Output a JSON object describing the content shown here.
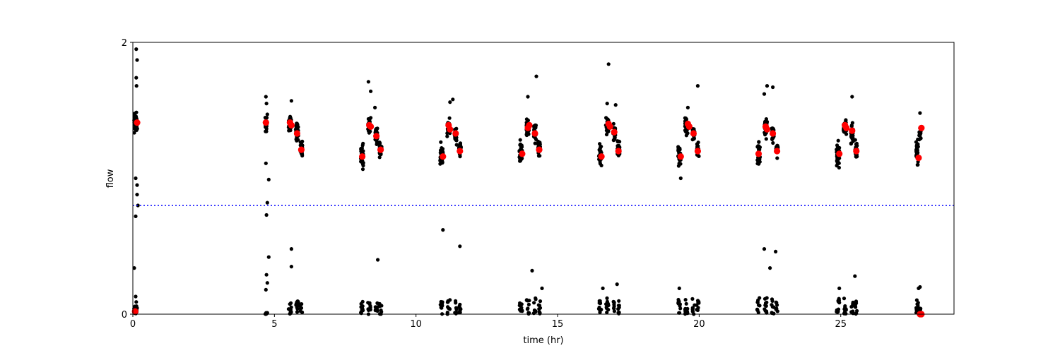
{
  "chart_data": {
    "type": "scatter",
    "title": "",
    "xlabel": "time (hr)",
    "ylabel": "flow",
    "xlim": [
      0,
      29
    ],
    "ylim": [
      0,
      2
    ],
    "xticks": [
      0,
      5,
      10,
      15,
      20,
      25
    ],
    "yticks": [
      0,
      2
    ],
    "grid": false,
    "threshold": {
      "y": 0.8,
      "style": "dotted",
      "color": "#0000ff"
    },
    "colors": {
      "observations": "#000000",
      "markers": "#ff0000",
      "threshold": "#0000ff"
    },
    "observation_clusters": [
      {
        "x": 0.1,
        "width": 0.12,
        "high_center": 1.41,
        "high_spread": 0.1,
        "low_max": 0.06,
        "n": 55
      },
      {
        "x": 4.7,
        "width": 0.06,
        "high_center": 1.4,
        "high_spread": 0.08,
        "low_max": 0.01,
        "n": 20
      },
      {
        "x": 5.55,
        "width": 0.1,
        "high_center": 1.4,
        "high_spread": 0.08,
        "low_max": 0.1,
        "n": 30
      },
      {
        "x": 5.8,
        "width": 0.1,
        "high_center": 1.34,
        "high_spread": 0.1,
        "low_max": 0.1,
        "n": 30
      },
      {
        "x": 5.95,
        "width": 0.08,
        "high_center": 1.22,
        "high_spread": 0.08,
        "low_max": 0.08,
        "n": 25
      },
      {
        "x": 8.1,
        "width": 0.1,
        "high_center": 1.18,
        "high_spread": 0.12,
        "low_max": 0.1,
        "n": 30
      },
      {
        "x": 8.35,
        "width": 0.1,
        "high_center": 1.38,
        "high_spread": 0.08,
        "low_max": 0.1,
        "n": 30
      },
      {
        "x": 8.6,
        "width": 0.08,
        "high_center": 1.32,
        "high_spread": 0.1,
        "low_max": 0.1,
        "n": 25
      },
      {
        "x": 8.75,
        "width": 0.08,
        "high_center": 1.22,
        "high_spread": 0.08,
        "low_max": 0.08,
        "n": 25
      },
      {
        "x": 10.9,
        "width": 0.1,
        "high_center": 1.17,
        "high_spread": 0.12,
        "low_max": 0.1,
        "n": 30
      },
      {
        "x": 11.15,
        "width": 0.1,
        "high_center": 1.37,
        "high_spread": 0.09,
        "low_max": 0.12,
        "n": 30
      },
      {
        "x": 11.4,
        "width": 0.08,
        "high_center": 1.32,
        "high_spread": 0.1,
        "low_max": 0.1,
        "n": 25
      },
      {
        "x": 11.55,
        "width": 0.08,
        "high_center": 1.21,
        "high_spread": 0.08,
        "low_max": 0.08,
        "n": 25
      },
      {
        "x": 13.7,
        "width": 0.1,
        "high_center": 1.19,
        "high_spread": 0.12,
        "low_max": 0.1,
        "n": 30
      },
      {
        "x": 13.95,
        "width": 0.1,
        "high_center": 1.37,
        "high_spread": 0.09,
        "low_max": 0.12,
        "n": 30
      },
      {
        "x": 14.2,
        "width": 0.08,
        "high_center": 1.33,
        "high_spread": 0.1,
        "low_max": 0.12,
        "n": 25
      },
      {
        "x": 14.35,
        "width": 0.08,
        "high_center": 1.22,
        "high_spread": 0.08,
        "low_max": 0.1,
        "n": 25
      },
      {
        "x": 16.5,
        "width": 0.1,
        "high_center": 1.17,
        "high_spread": 0.12,
        "low_max": 0.1,
        "n": 30
      },
      {
        "x": 16.75,
        "width": 0.1,
        "high_center": 1.38,
        "high_spread": 0.09,
        "low_max": 0.12,
        "n": 30
      },
      {
        "x": 17.0,
        "width": 0.08,
        "high_center": 1.33,
        "high_spread": 0.1,
        "low_max": 0.12,
        "n": 25
      },
      {
        "x": 17.15,
        "width": 0.08,
        "high_center": 1.21,
        "high_spread": 0.08,
        "low_max": 0.1,
        "n": 25
      },
      {
        "x": 19.3,
        "width": 0.1,
        "high_center": 1.17,
        "high_spread": 0.12,
        "low_max": 0.12,
        "n": 30
      },
      {
        "x": 19.55,
        "width": 0.1,
        "high_center": 1.38,
        "high_spread": 0.09,
        "low_max": 0.12,
        "n": 30
      },
      {
        "x": 19.8,
        "width": 0.08,
        "high_center": 1.33,
        "high_spread": 0.1,
        "low_max": 0.12,
        "n": 25
      },
      {
        "x": 19.95,
        "width": 0.08,
        "high_center": 1.21,
        "high_spread": 0.08,
        "low_max": 0.1,
        "n": 25
      },
      {
        "x": 22.1,
        "width": 0.1,
        "high_center": 1.18,
        "high_spread": 0.12,
        "low_max": 0.12,
        "n": 30
      },
      {
        "x": 22.35,
        "width": 0.1,
        "high_center": 1.37,
        "high_spread": 0.09,
        "low_max": 0.12,
        "n": 30
      },
      {
        "x": 22.6,
        "width": 0.08,
        "high_center": 1.32,
        "high_spread": 0.1,
        "low_max": 0.12,
        "n": 25
      },
      {
        "x": 22.75,
        "width": 0.08,
        "high_center": 1.21,
        "high_spread": 0.08,
        "low_max": 0.1,
        "n": 25
      },
      {
        "x": 24.9,
        "width": 0.1,
        "high_center": 1.18,
        "high_spread": 0.12,
        "low_max": 0.12,
        "n": 30
      },
      {
        "x": 25.15,
        "width": 0.1,
        "high_center": 1.37,
        "high_spread": 0.09,
        "low_max": 0.12,
        "n": 30
      },
      {
        "x": 25.4,
        "width": 0.08,
        "high_center": 1.32,
        "high_spread": 0.1,
        "low_max": 0.12,
        "n": 25
      },
      {
        "x": 25.55,
        "width": 0.08,
        "high_center": 1.21,
        "high_spread": 0.08,
        "low_max": 0.1,
        "n": 25
      },
      {
        "x": 27.7,
        "width": 0.08,
        "high_center": 1.2,
        "high_spread": 0.12,
        "low_max": 0.12,
        "n": 30
      },
      {
        "x": 27.8,
        "width": 0.06,
        "high_center": 1.32,
        "high_spread": 0.08,
        "low_max": 0.05,
        "n": 15
      }
    ],
    "observation_outliers": [
      [
        0.12,
        1.95
      ],
      [
        0.15,
        1.87
      ],
      [
        0.12,
        1.74
      ],
      [
        0.13,
        1.68
      ],
      [
        0.1,
        1.0
      ],
      [
        0.15,
        0.95
      ],
      [
        0.15,
        0.88
      ],
      [
        0.18,
        0.8
      ],
      [
        0.1,
        0.72
      ],
      [
        0.05,
        0.34
      ],
      [
        0.1,
        0.13
      ],
      [
        0.12,
        0.09
      ],
      [
        4.7,
        1.6
      ],
      [
        4.72,
        1.55
      ],
      [
        4.75,
        1.47
      ],
      [
        4.7,
        1.11
      ],
      [
        4.8,
        0.99
      ],
      [
        4.75,
        0.82
      ],
      [
        4.72,
        0.73
      ],
      [
        4.8,
        0.42
      ],
      [
        4.72,
        0.29
      ],
      [
        4.75,
        0.23
      ],
      [
        4.7,
        0.18
      ],
      [
        4.75,
        0.01
      ],
      [
        5.6,
        0.48
      ],
      [
        5.6,
        0.35
      ],
      [
        5.6,
        1.57
      ],
      [
        8.32,
        1.71
      ],
      [
        8.4,
        1.64
      ],
      [
        8.65,
        0.4
      ],
      [
        8.55,
        1.52
      ],
      [
        10.95,
        0.62
      ],
      [
        11.55,
        0.5
      ],
      [
        11.2,
        1.56
      ],
      [
        11.3,
        1.58
      ],
      [
        13.95,
        1.6
      ],
      [
        14.25,
        1.75
      ],
      [
        14.1,
        0.32
      ],
      [
        14.45,
        0.19
      ],
      [
        16.8,
        1.84
      ],
      [
        16.75,
        1.55
      ],
      [
        17.05,
        1.54
      ],
      [
        17.1,
        0.22
      ],
      [
        16.6,
        0.19
      ],
      [
        19.6,
        1.52
      ],
      [
        19.95,
        1.68
      ],
      [
        19.35,
        1.0
      ],
      [
        19.3,
        0.19
      ],
      [
        22.3,
        0.48
      ],
      [
        22.4,
        1.68
      ],
      [
        22.6,
        1.67
      ],
      [
        22.5,
        0.34
      ],
      [
        22.7,
        0.46
      ],
      [
        22.3,
        1.62
      ],
      [
        25.4,
        1.6
      ],
      [
        25.5,
        0.28
      ],
      [
        24.95,
        0.19
      ],
      [
        27.75,
        0.19
      ],
      [
        27.8,
        0.2
      ],
      [
        27.8,
        1.48
      ]
    ],
    "markers": [
      [
        0.15,
        1.41
      ],
      [
        0.08,
        0.02
      ],
      [
        4.7,
        1.41
      ],
      [
        5.55,
        1.41
      ],
      [
        5.6,
        1.39
      ],
      [
        5.8,
        1.33
      ],
      [
        5.95,
        1.21
      ],
      [
        8.1,
        1.16
      ],
      [
        8.35,
        1.39
      ],
      [
        8.4,
        1.38
      ],
      [
        8.6,
        1.31
      ],
      [
        8.75,
        1.21
      ],
      [
        10.95,
        1.16
      ],
      [
        11.15,
        1.39
      ],
      [
        11.2,
        1.36
      ],
      [
        11.4,
        1.33
      ],
      [
        11.55,
        1.2
      ],
      [
        13.75,
        1.18
      ],
      [
        13.95,
        1.37
      ],
      [
        14.0,
        1.39
      ],
      [
        14.2,
        1.33
      ],
      [
        14.35,
        1.21
      ],
      [
        16.55,
        1.16
      ],
      [
        16.8,
        1.4
      ],
      [
        16.85,
        1.38
      ],
      [
        17.0,
        1.34
      ],
      [
        17.15,
        1.2
      ],
      [
        19.35,
        1.16
      ],
      [
        19.6,
        1.4
      ],
      [
        19.65,
        1.38
      ],
      [
        19.8,
        1.33
      ],
      [
        19.95,
        1.2
      ],
      [
        22.1,
        1.18
      ],
      [
        22.35,
        1.38
      ],
      [
        22.4,
        1.36
      ],
      [
        22.6,
        1.33
      ],
      [
        22.75,
        1.2
      ],
      [
        24.95,
        1.18
      ],
      [
        25.15,
        1.39
      ],
      [
        25.2,
        1.37
      ],
      [
        25.4,
        1.35
      ],
      [
        25.55,
        1.2
      ],
      [
        27.75,
        1.15
      ],
      [
        27.85,
        1.37
      ],
      [
        27.8,
        0.0
      ],
      [
        27.85,
        0.0
      ]
    ]
  }
}
